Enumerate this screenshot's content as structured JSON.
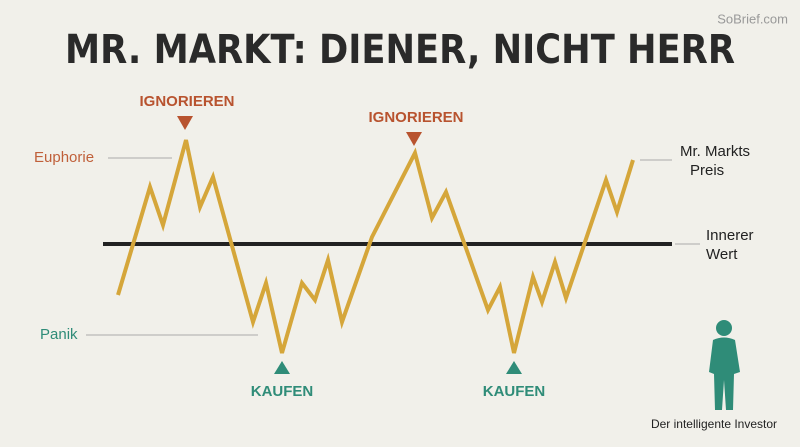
{
  "watermark": "SoBrief.com",
  "title": "MR. MARKT: DIENER, NICHT HERR",
  "zones": {
    "high": "Euphorie",
    "low": "Panik"
  },
  "markers": [
    {
      "label": "IGNORIEREN"
    },
    {
      "label": "IGNORIEREN"
    },
    {
      "label": "KAUFEN"
    },
    {
      "label": "KAUFEN"
    }
  ],
  "lines": {
    "price": [
      "Mr. Markts",
      "Preis"
    ],
    "value": [
      "Innerer",
      "Wert"
    ]
  },
  "investor": "Der intelligente Investor"
}
